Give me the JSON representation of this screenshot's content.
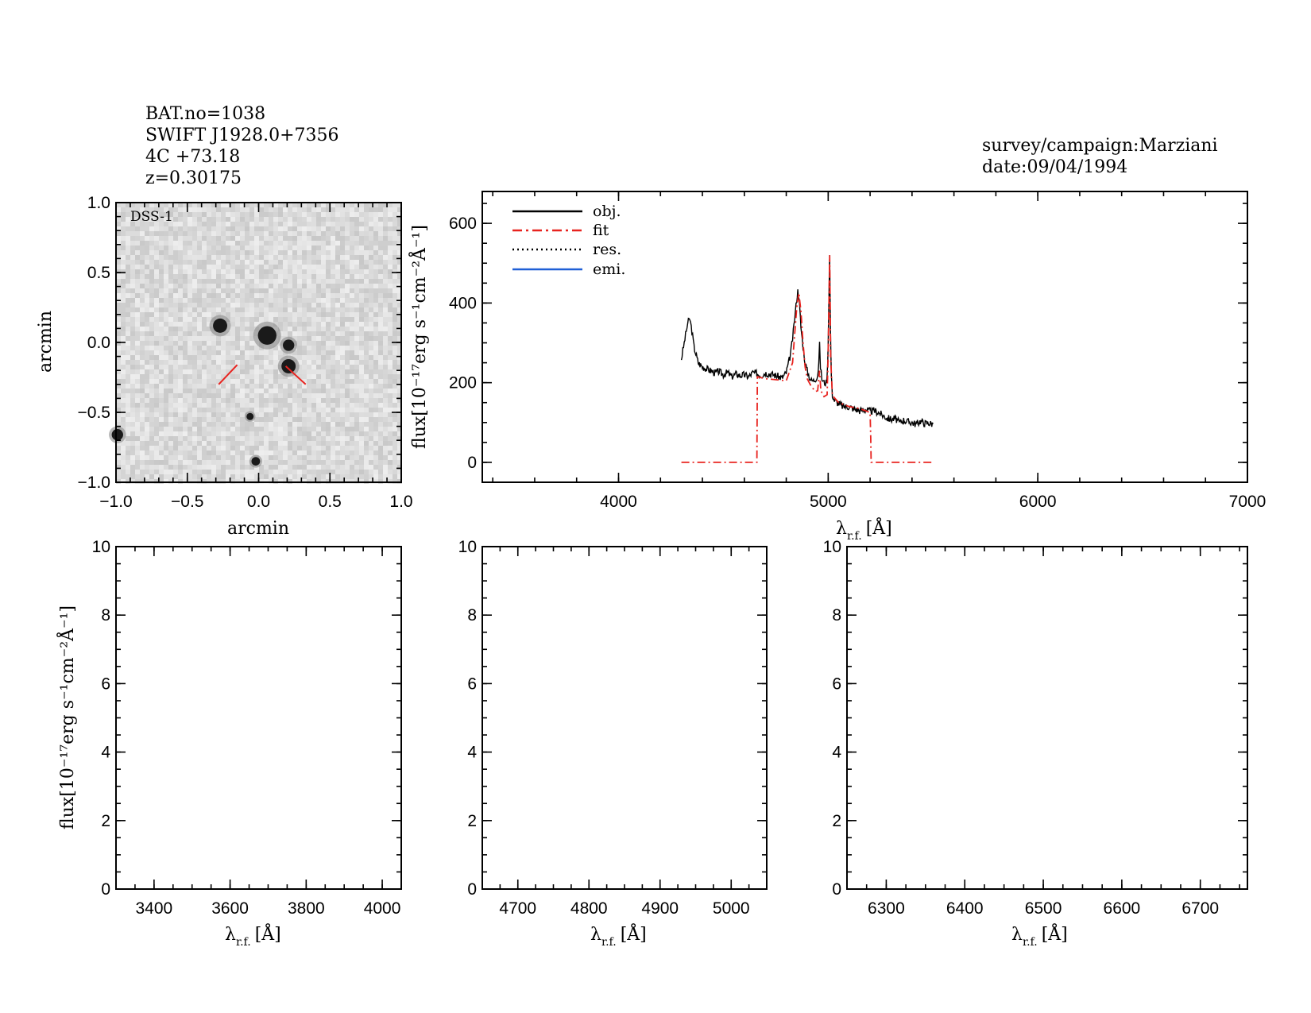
{
  "header": {
    "bat_no": "BAT.no=1038",
    "swift_name": "SWIFT J1928.0+7356",
    "counterpart": "4C +73.18",
    "redshift": "z=0.30175",
    "survey": "survey/campaign:Marziani",
    "date": "date:09/04/1994"
  },
  "colors": {
    "obj": "#000000",
    "fit": "#e8231f",
    "res": "#000000",
    "emi": "#1f5fd6"
  },
  "chart_data": [
    {
      "id": "image",
      "type": "heatmap",
      "label": "DSS-1",
      "xlabel": "arcmin",
      "ylabel": "arcmin",
      "xlim": [
        -1.0,
        1.0
      ],
      "ylim": [
        -1.0,
        1.0
      ],
      "xticks": [
        "−1.0",
        "−0.5",
        "0.0",
        "0.5",
        "1.0"
      ],
      "yticks": [
        "−1.0",
        "−0.5",
        "0.0",
        "0.5",
        "1.0"
      ],
      "tick_values": [
        -1.0,
        -0.5,
        0.0,
        0.5,
        1.0
      ],
      "sources": [
        {
          "x": -0.27,
          "y": 0.12,
          "r": 0.05
        },
        {
          "x": 0.06,
          "y": 0.05,
          "r": 0.065
        },
        {
          "x": 0.21,
          "y": -0.02,
          "r": 0.04
        },
        {
          "x": 0.21,
          "y": -0.17,
          "r": 0.05
        },
        {
          "x": -0.06,
          "y": -0.53,
          "r": 0.025
        },
        {
          "x": -0.02,
          "y": -0.85,
          "r": 0.03
        },
        {
          "x": -0.99,
          "y": -0.66,
          "r": 0.04
        }
      ],
      "marker_lines": [
        {
          "x1": -0.28,
          "y1": -0.3,
          "x2": -0.15,
          "y2": -0.16
        },
        {
          "x1": 0.33,
          "y1": -0.3,
          "x2": 0.19,
          "y2": -0.17
        }
      ]
    },
    {
      "id": "main",
      "type": "line",
      "xlabel": "λ",
      "xlabel_sub": "r.f.",
      "xlabel_unit": "[Å]",
      "ylabel": "flux[10⁻¹⁷erg s⁻¹cm⁻²Å⁻¹]",
      "xlim": [
        3350,
        7000
      ],
      "ylim": [
        -50,
        680
      ],
      "xticks": [
        4000,
        5000,
        6000,
        7000
      ],
      "yticks": [
        0,
        200,
        400,
        600
      ],
      "legend": [
        "obj.",
        "fit",
        "res.",
        "emi."
      ],
      "series": [
        {
          "name": "obj.",
          "x": [
            4300,
            4310,
            4320,
            4330,
            4340,
            4350,
            4360,
            4380,
            4400,
            4420,
            4440,
            4460,
            4480,
            4500,
            4520,
            4540,
            4560,
            4580,
            4600,
            4620,
            4640,
            4660,
            4680,
            4700,
            4720,
            4740,
            4760,
            4780,
            4800,
            4820,
            4830,
            4840,
            4850,
            4855,
            4860,
            4865,
            4870,
            4880,
            4890,
            4900,
            4910,
            4920,
            4930,
            4940,
            4950,
            4955,
            4959,
            4963,
            4970,
            4980,
            4990,
            4995,
            5000,
            5003,
            5007,
            5011,
            5015,
            5020,
            5030,
            5050,
            5070,
            5100,
            5120,
            5150,
            5180,
            5200,
            5220,
            5240,
            5260,
            5280,
            5300,
            5320,
            5340,
            5360,
            5380,
            5400,
            5420,
            5440,
            5460,
            5480,
            5500
          ],
          "y": [
            260,
            290,
            320,
            350,
            360,
            330,
            290,
            250,
            240,
            235,
            230,
            225,
            228,
            220,
            226,
            215,
            222,
            218,
            220,
            215,
            225,
            223,
            218,
            225,
            222,
            220,
            216,
            212,
            225,
            270,
            310,
            360,
            410,
            430,
            420,
            380,
            340,
            290,
            250,
            230,
            215,
            205,
            205,
            210,
            220,
            250,
            295,
            240,
            210,
            200,
            200,
            215,
            300,
            400,
            520,
            330,
            220,
            170,
            155,
            148,
            140,
            140,
            135,
            130,
            133,
            128,
            130,
            125,
            118,
            112,
            108,
            110,
            100,
            106,
            102,
            100,
            96,
            104,
            98,
            99,
            96
          ]
        },
        {
          "name": "fit",
          "x": [
            4300,
            4650,
            4660,
            4662,
            4700,
            4800,
            4830,
            4840,
            4850,
            4860,
            4870,
            4880,
            4890,
            4900,
            4920,
            4940,
            4950,
            4959,
            4965,
            4980,
            4995,
            5000,
            5007,
            5012,
            5020,
            5050,
            5100,
            5150,
            5200,
            5203,
            5205,
            5500
          ],
          "y": [
            0,
            0,
            0,
            215,
            210,
            205,
            250,
            320,
            390,
            425,
            380,
            300,
            240,
            210,
            190,
            178,
            180,
            230,
            180,
            165,
            170,
            270,
            520,
            260,
            168,
            150,
            140,
            135,
            125,
            60,
            0,
            0
          ]
        }
      ]
    },
    {
      "id": "panel_1",
      "type": "line",
      "xlabel": "λ",
      "xlabel_sub": "r.f.",
      "xlabel_unit": "[Å]",
      "ylabel": "flux[10⁻¹⁷erg s⁻¹cm⁻²Å⁻¹]",
      "xlim": [
        3300,
        4050
      ],
      "ylim": [
        0,
        10
      ],
      "xticks": [
        3400,
        3600,
        3800,
        4000
      ],
      "yticks": [
        0,
        2,
        4,
        6,
        8,
        10
      ]
    },
    {
      "id": "panel_2",
      "type": "line",
      "xlabel": "λ",
      "xlabel_sub": "r.f.",
      "xlabel_unit": "[Å]",
      "xlim": [
        4650,
        5050
      ],
      "ylim": [
        0,
        10
      ],
      "xticks": [
        4700,
        4800,
        4900,
        5000
      ],
      "yticks": [
        0,
        2,
        4,
        6,
        8,
        10
      ]
    },
    {
      "id": "panel_3",
      "type": "line",
      "xlabel": "λ",
      "xlabel_sub": "r.f.",
      "xlabel_unit": "[Å]",
      "xlim": [
        6250,
        6760
      ],
      "ylim": [
        0,
        10
      ],
      "xticks": [
        6300,
        6400,
        6500,
        6600,
        6700
      ],
      "yticks": [
        0,
        2,
        4,
        6,
        8,
        10
      ]
    }
  ]
}
